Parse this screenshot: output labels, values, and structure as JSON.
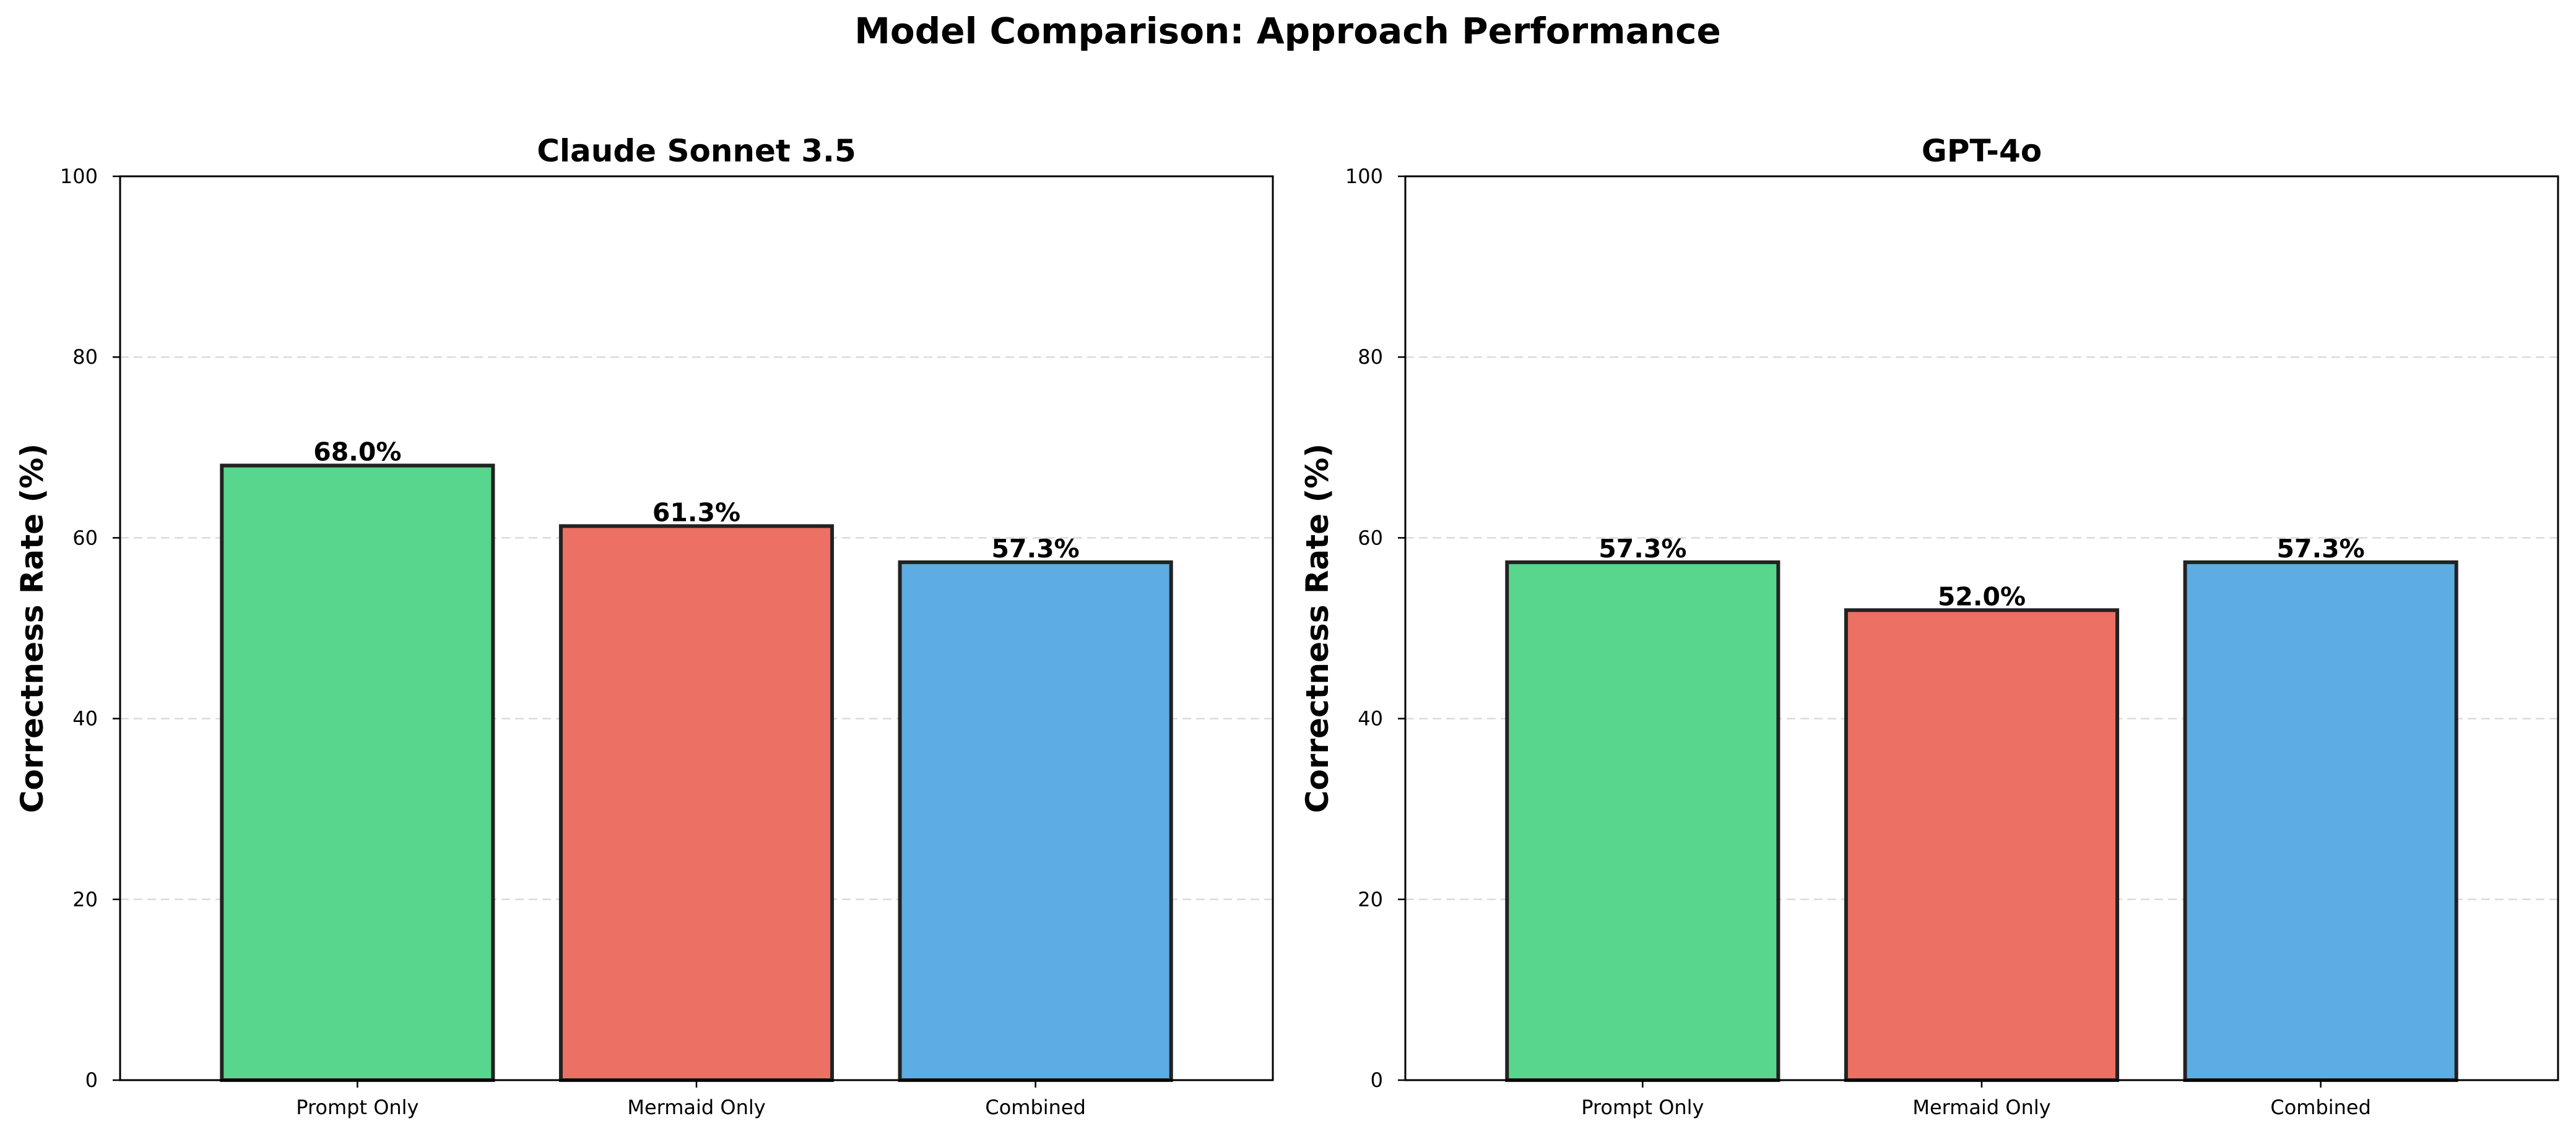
{
  "figure": {
    "title": "Model Comparison: Approach Performance"
  },
  "colors": {
    "green": "#58d68d",
    "red": "#ec7063",
    "blue": "#5dade2",
    "edge": "#222222",
    "grid": "#cccccc"
  },
  "chart_data": [
    {
      "type": "bar",
      "title": "Claude Sonnet 3.5",
      "xlabel": "",
      "ylabel": "Correctness Rate (%)",
      "categories": [
        "Prompt Only",
        "Mermaid Only",
        "Combined"
      ],
      "values": [
        68.0,
        61.3,
        57.3
      ],
      "value_labels": [
        "68.0%",
        "61.3%",
        "57.3%"
      ],
      "bar_colors": [
        "#58d68d",
        "#ec7063",
        "#5dade2"
      ],
      "ylim": [
        0,
        100
      ],
      "yticks": [
        0,
        20,
        40,
        60,
        80,
        100
      ],
      "grid": "y dashed",
      "legend": "none"
    },
    {
      "type": "bar",
      "title": "GPT-4o",
      "xlabel": "",
      "ylabel": "Correctness Rate (%)",
      "categories": [
        "Prompt Only",
        "Mermaid Only",
        "Combined"
      ],
      "values": [
        57.3,
        52.0,
        57.3
      ],
      "value_labels": [
        "57.3%",
        "52.0%",
        "57.3%"
      ],
      "bar_colors": [
        "#58d68d",
        "#ec7063",
        "#5dade2"
      ],
      "ylim": [
        0,
        100
      ],
      "yticks": [
        0,
        20,
        40,
        60,
        80,
        100
      ],
      "grid": "y dashed",
      "legend": "none"
    }
  ]
}
